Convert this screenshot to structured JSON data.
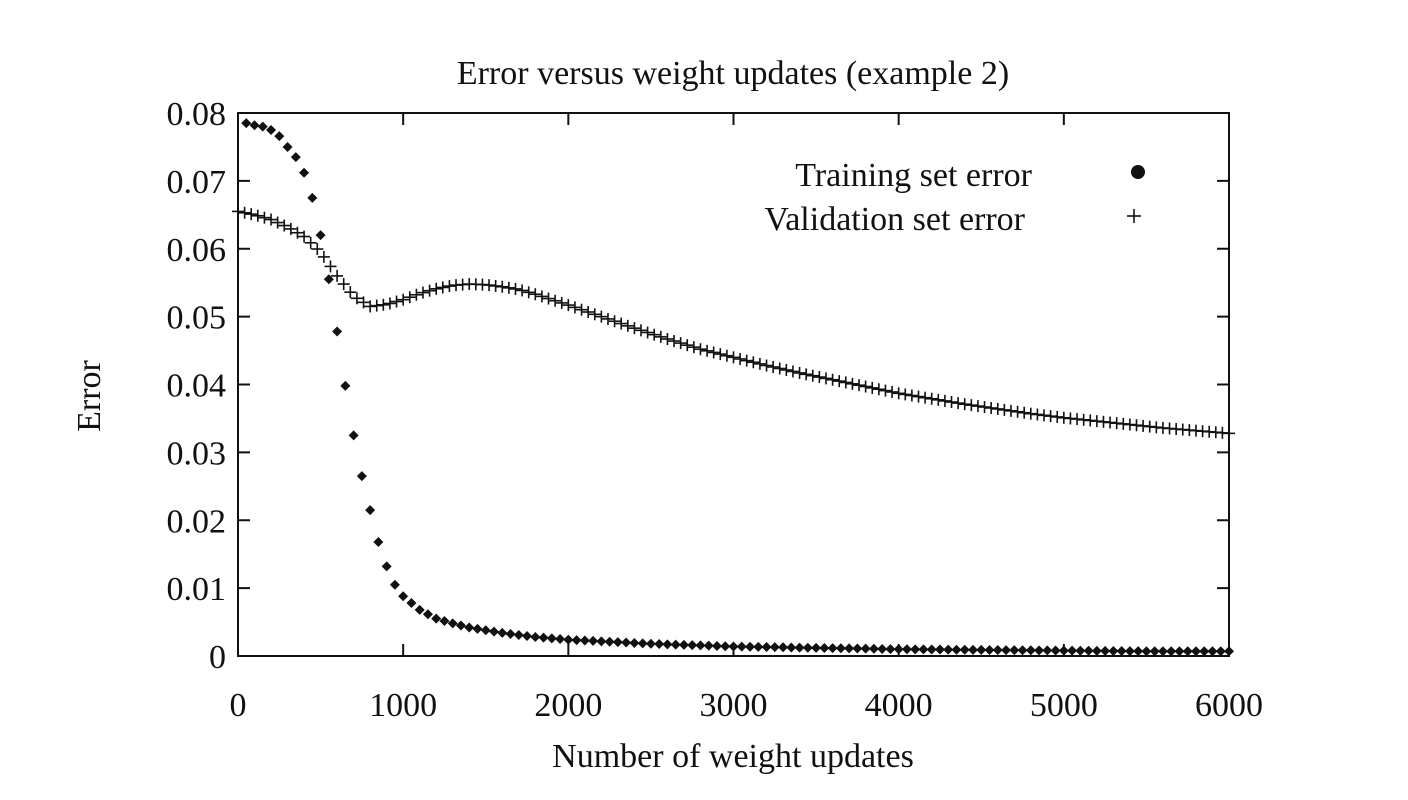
{
  "chart_data": {
    "type": "scatter",
    "title": "Error versus weight updates (example 2)",
    "xlabel": "Number of weight updates",
    "ylabel": "Error",
    "xlim": [
      0,
      6000
    ],
    "ylim": [
      0,
      0.08
    ],
    "xticks": [
      "0",
      "1000",
      "2000",
      "3000",
      "4000",
      "5000",
      "6000"
    ],
    "yticks": [
      "0",
      "0.01",
      "0.02",
      "0.03",
      "0.04",
      "0.05",
      "0.06",
      "0.07",
      "0.08"
    ],
    "grid": false,
    "legend_position": "top-right",
    "series": [
      {
        "name": "Training set error",
        "marker": "diamond",
        "color": "#111111",
        "x": [
          50,
          100,
          150,
          200,
          250,
          300,
          350,
          400,
          450,
          500,
          550,
          600,
          650,
          700,
          750,
          800,
          850,
          900,
          950,
          1000,
          1100,
          1200,
          1300,
          1400,
          1500,
          1600,
          1800,
          2000,
          2500,
          3000,
          3500,
          4000,
          4500,
          5000,
          5500,
          6000
        ],
        "y": [
          0.0785,
          0.0782,
          0.078,
          0.0775,
          0.0766,
          0.075,
          0.0735,
          0.0712,
          0.0675,
          0.062,
          0.0555,
          0.0478,
          0.0398,
          0.0325,
          0.0265,
          0.0215,
          0.0168,
          0.0132,
          0.0105,
          0.0088,
          0.0068,
          0.0055,
          0.0048,
          0.0042,
          0.0038,
          0.0034,
          0.0028,
          0.0024,
          0.0018,
          0.0014,
          0.0012,
          0.001,
          0.0009,
          0.0008,
          0.0007,
          0.0007
        ]
      },
      {
        "name": "Validation set error",
        "marker": "plus",
        "color": "#111111",
        "x": [
          0,
          100,
          200,
          300,
          400,
          500,
          600,
          700,
          800,
          900,
          1000,
          1100,
          1200,
          1300,
          1400,
          1500,
          1600,
          1700,
          1800,
          2000,
          2200,
          2400,
          2600,
          2800,
          3000,
          3200,
          3400,
          3600,
          3800,
          4000,
          4200,
          4400,
          4600,
          4800,
          5000,
          5200,
          5400,
          5600,
          5800,
          6000
        ],
        "y": [
          0.0655,
          0.065,
          0.0643,
          0.0632,
          0.0618,
          0.0595,
          0.056,
          0.053,
          0.0515,
          0.0518,
          0.0525,
          0.0534,
          0.0541,
          0.0546,
          0.0548,
          0.0547,
          0.0544,
          0.054,
          0.0533,
          0.0517,
          0.05,
          0.0483,
          0.0467,
          0.0452,
          0.044,
          0.0428,
          0.0417,
          0.0407,
          0.0397,
          0.0387,
          0.0379,
          0.0371,
          0.0364,
          0.0357,
          0.0351,
          0.0346,
          0.0341,
          0.0336,
          0.0332,
          0.0328
        ]
      }
    ]
  }
}
